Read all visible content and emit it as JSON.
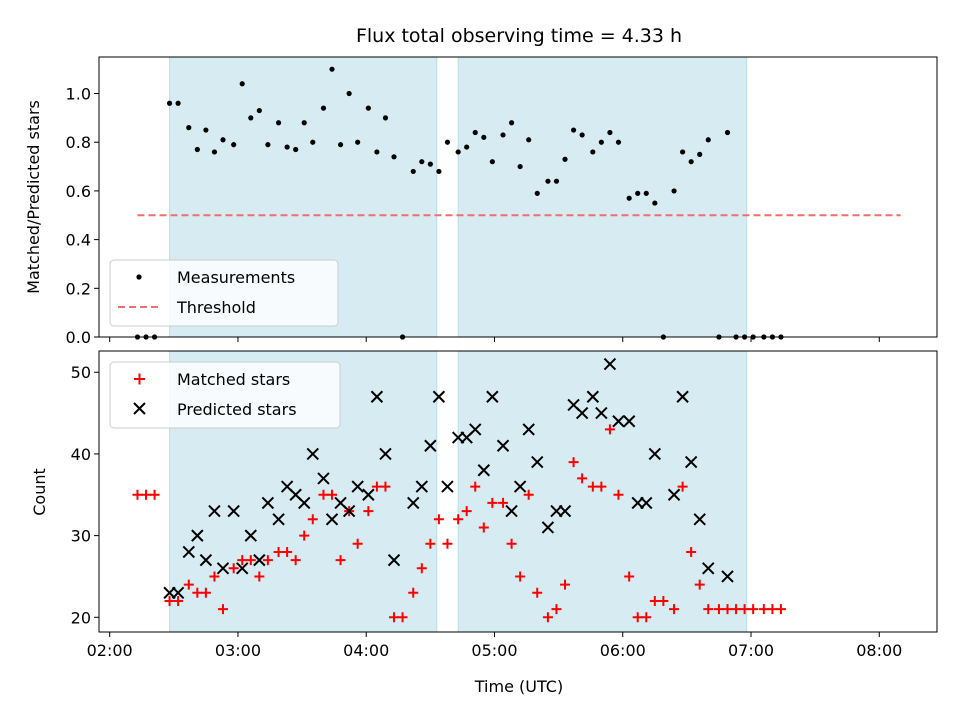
{
  "chart_data": [
    {
      "type": "scatter",
      "title": "Flux total observing time = 4.33 h",
      "ylabel": "Matched/Predicted stars",
      "xlabel": "",
      "xlim": [
        "01:55",
        "08:27"
      ],
      "ylim": [
        0,
        1.15
      ],
      "x_ticks": [
        "02:00",
        "03:00",
        "04:00",
        "05:00",
        "06:00",
        "07:00",
        "08:00"
      ],
      "y_ticks": [
        "0.0",
        "0.2",
        "0.4",
        "0.6",
        "0.8",
        "1.0"
      ],
      "y_tick_values": [
        0,
        0.2,
        0.4,
        0.6,
        0.8,
        1.0
      ],
      "shaded_intervals": [
        [
          "02:28",
          "04:33"
        ],
        [
          "04:43",
          "06:58"
        ]
      ],
      "legend": {
        "position": "lower-left",
        "entries": [
          "Measurements",
          "Threshold"
        ]
      },
      "series": [
        {
          "name": "Measurements",
          "marker": "dot",
          "color": "#000000",
          "points": [
            [
              "02:13",
              0
            ],
            [
              "02:17",
              0
            ],
            [
              "02:21",
              0
            ],
            [
              "02:28",
              0.96
            ],
            [
              "02:32",
              0.96
            ],
            [
              "02:37",
              0.86
            ],
            [
              "02:41",
              0.77
            ],
            [
              "02:45",
              0.85
            ],
            [
              "02:49",
              0.76
            ],
            [
              "02:53",
              0.81
            ],
            [
              "02:58",
              0.79
            ],
            [
              "03:02",
              1.04
            ],
            [
              "03:06",
              0.9
            ],
            [
              "03:10",
              0.93
            ],
            [
              "03:14",
              0.79
            ],
            [
              "03:19",
              0.88
            ],
            [
              "03:23",
              0.78
            ],
            [
              "03:27",
              0.77
            ],
            [
              "03:31",
              0.88
            ],
            [
              "03:35",
              0.8
            ],
            [
              "03:40",
              0.94
            ],
            [
              "03:44",
              1.1
            ],
            [
              "03:48",
              0.79
            ],
            [
              "03:52",
              1.0
            ],
            [
              "03:56",
              0.8
            ],
            [
              "04:01",
              0.94
            ],
            [
              "04:05",
              0.76
            ],
            [
              "04:09",
              0.9
            ],
            [
              "04:13",
              0.74
            ],
            [
              "04:17",
              0.0
            ],
            [
              "04:22",
              0.68
            ],
            [
              "04:26",
              0.72
            ],
            [
              "04:30",
              0.71
            ],
            [
              "04:34",
              0.68
            ],
            [
              "04:38",
              0.8
            ],
            [
              "04:43",
              0.76
            ],
            [
              "04:47",
              0.78
            ],
            [
              "04:51",
              0.84
            ],
            [
              "04:55",
              0.82
            ],
            [
              "04:59",
              0.72
            ],
            [
              "05:04",
              0.83
            ],
            [
              "05:08",
              0.88
            ],
            [
              "05:12",
              0.7
            ],
            [
              "05:16",
              0.81
            ],
            [
              "05:20",
              0.59
            ],
            [
              "05:25",
              0.64
            ],
            [
              "05:29",
              0.64
            ],
            [
              "05:33",
              0.73
            ],
            [
              "05:37",
              0.85
            ],
            [
              "05:41",
              0.83
            ],
            [
              "05:46",
              0.76
            ],
            [
              "05:50",
              0.8
            ],
            [
              "05:54",
              0.84
            ],
            [
              "05:58",
              0.8
            ],
            [
              "06:03",
              0.57
            ],
            [
              "06:07",
              0.59
            ],
            [
              "06:11",
              0.59
            ],
            [
              "06:15",
              0.55
            ],
            [
              "06:19",
              0.0
            ],
            [
              "06:24",
              0.6
            ],
            [
              "06:28",
              0.76
            ],
            [
              "06:32",
              0.72
            ],
            [
              "06:36",
              0.75
            ],
            [
              "06:40",
              0.81
            ],
            [
              "06:45",
              0.0
            ],
            [
              "06:49",
              0.84
            ],
            [
              "06:53",
              0.0
            ],
            [
              "06:57",
              0.0
            ],
            [
              "07:01",
              0.0
            ],
            [
              "07:06",
              0.0
            ],
            [
              "07:10",
              0.0
            ],
            [
              "07:14",
              0.0
            ]
          ]
        },
        {
          "name": "Threshold",
          "style": "dashed",
          "color": "#f26d6d",
          "points": [
            [
              "02:13",
              0.5
            ],
            [
              "08:10",
              0.5
            ]
          ]
        }
      ]
    },
    {
      "type": "scatter",
      "title": "",
      "ylabel": "Count",
      "xlabel": "Time (UTC)",
      "xlim": [
        "01:55",
        "08:27"
      ],
      "ylim": [
        18.2,
        52.6
      ],
      "x_ticks": [
        "02:00",
        "03:00",
        "04:00",
        "05:00",
        "06:00",
        "07:00",
        "08:00"
      ],
      "y_ticks": [
        "20",
        "30",
        "40",
        "50"
      ],
      "y_tick_values": [
        20,
        30,
        40,
        50
      ],
      "shaded_intervals": [
        [
          "02:28",
          "04:33"
        ],
        [
          "04:43",
          "06:58"
        ]
      ],
      "legend": {
        "position": "top-left",
        "entries": [
          "Matched stars",
          "Predicted stars"
        ]
      },
      "series": [
        {
          "name": "Matched stars",
          "marker": "plus",
          "color": "#ff0000",
          "points": [
            [
              "02:13",
              35
            ],
            [
              "02:17",
              35
            ],
            [
              "02:21",
              35
            ],
            [
              "02:28",
              22
            ],
            [
              "02:32",
              22
            ],
            [
              "02:37",
              24
            ],
            [
              "02:41",
              23
            ],
            [
              "02:45",
              23
            ],
            [
              "02:49",
              25
            ],
            [
              "02:53",
              21
            ],
            [
              "02:58",
              26
            ],
            [
              "03:02",
              27
            ],
            [
              "03:06",
              27
            ],
            [
              "03:10",
              25
            ],
            [
              "03:14",
              27
            ],
            [
              "03:19",
              28
            ],
            [
              "03:23",
              28
            ],
            [
              "03:27",
              27
            ],
            [
              "03:31",
              30
            ],
            [
              "03:35",
              32
            ],
            [
              "03:40",
              35
            ],
            [
              "03:44",
              35
            ],
            [
              "03:48",
              27
            ],
            [
              "03:52",
              33
            ],
            [
              "03:56",
              29
            ],
            [
              "04:01",
              33
            ],
            [
              "04:05",
              36
            ],
            [
              "04:09",
              36
            ],
            [
              "04:13",
              20
            ],
            [
              "04:17",
              20
            ],
            [
              "04:22",
              23
            ],
            [
              "04:26",
              26
            ],
            [
              "04:30",
              29
            ],
            [
              "04:34",
              32
            ],
            [
              "04:38",
              29
            ],
            [
              "04:43",
              32
            ],
            [
              "04:47",
              33
            ],
            [
              "04:51",
              36
            ],
            [
              "04:55",
              31
            ],
            [
              "04:59",
              34
            ],
            [
              "05:04",
              34
            ],
            [
              "05:08",
              29
            ],
            [
              "05:12",
              25
            ],
            [
              "05:16",
              35
            ],
            [
              "05:20",
              23
            ],
            [
              "05:25",
              20
            ],
            [
              "05:29",
              21
            ],
            [
              "05:33",
              24
            ],
            [
              "05:37",
              39
            ],
            [
              "05:41",
              37
            ],
            [
              "05:46",
              36
            ],
            [
              "05:50",
              36
            ],
            [
              "05:54",
              43
            ],
            [
              "05:58",
              35
            ],
            [
              "06:03",
              25
            ],
            [
              "06:07",
              20
            ],
            [
              "06:11",
              20
            ],
            [
              "06:15",
              22
            ],
            [
              "06:19",
              22
            ],
            [
              "06:24",
              21
            ],
            [
              "06:28",
              36
            ],
            [
              "06:32",
              28
            ],
            [
              "06:36",
              24
            ],
            [
              "06:40",
              21
            ],
            [
              "06:45",
              21
            ],
            [
              "06:49",
              21
            ],
            [
              "06:53",
              21
            ],
            [
              "06:57",
              21
            ],
            [
              "07:01",
              21
            ],
            [
              "07:06",
              21
            ],
            [
              "07:10",
              21
            ],
            [
              "07:14",
              21
            ]
          ]
        },
        {
          "name": "Predicted stars",
          "marker": "x",
          "color": "#000000",
          "points": [
            [
              "02:28",
              23
            ],
            [
              "02:32",
              23
            ],
            [
              "02:37",
              28
            ],
            [
              "02:41",
              30
            ],
            [
              "02:45",
              27
            ],
            [
              "02:49",
              33
            ],
            [
              "02:53",
              26
            ],
            [
              "02:58",
              33
            ],
            [
              "03:02",
              26
            ],
            [
              "03:06",
              30
            ],
            [
              "03:10",
              27
            ],
            [
              "03:14",
              34
            ],
            [
              "03:19",
              32
            ],
            [
              "03:23",
              36
            ],
            [
              "03:27",
              35
            ],
            [
              "03:31",
              34
            ],
            [
              "03:35",
              40
            ],
            [
              "03:40",
              37
            ],
            [
              "03:44",
              32
            ],
            [
              "03:48",
              34
            ],
            [
              "03:52",
              33
            ],
            [
              "03:56",
              36
            ],
            [
              "04:01",
              35
            ],
            [
              "04:05",
              47
            ],
            [
              "04:09",
              40
            ],
            [
              "04:13",
              27
            ],
            [
              "04:22",
              34
            ],
            [
              "04:26",
              36
            ],
            [
              "04:30",
              41
            ],
            [
              "04:34",
              47
            ],
            [
              "04:38",
              36
            ],
            [
              "04:43",
              42
            ],
            [
              "04:47",
              42
            ],
            [
              "04:51",
              43
            ],
            [
              "04:55",
              38
            ],
            [
              "04:59",
              47
            ],
            [
              "05:04",
              41
            ],
            [
              "05:08",
              33
            ],
            [
              "05:12",
              36
            ],
            [
              "05:16",
              43
            ],
            [
              "05:20",
              39
            ],
            [
              "05:25",
              31
            ],
            [
              "05:29",
              33
            ],
            [
              "05:33",
              33
            ],
            [
              "05:37",
              46
            ],
            [
              "05:41",
              45
            ],
            [
              "05:46",
              47
            ],
            [
              "05:50",
              45
            ],
            [
              "05:54",
              51
            ],
            [
              "05:58",
              44
            ],
            [
              "06:03",
              44
            ],
            [
              "06:07",
              34
            ],
            [
              "06:11",
              34
            ],
            [
              "06:15",
              40
            ],
            [
              "06:24",
              35
            ],
            [
              "06:28",
              47
            ],
            [
              "06:32",
              39
            ],
            [
              "06:36",
              32
            ],
            [
              "06:40",
              26
            ],
            [
              "06:49",
              25
            ]
          ]
        }
      ]
    }
  ]
}
